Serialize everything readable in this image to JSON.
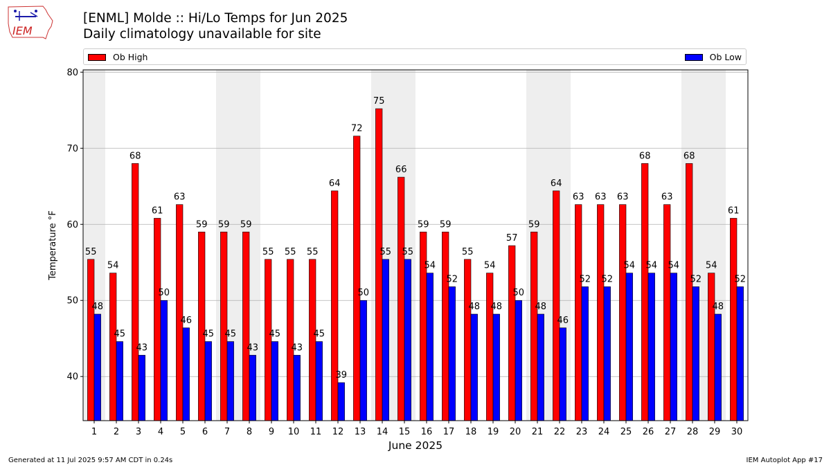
{
  "logo": {
    "text": "IEM"
  },
  "header": {
    "title": "[ENML] Molde :: Hi/Lo Temps for Jun 2025",
    "subtitle": "Daily climatology unavailable for site"
  },
  "legend": {
    "high_label": "Ob High",
    "low_label": "Ob Low"
  },
  "footer": {
    "generated": "Generated at 11 Jul 2025 9:57 AM CDT in 0.24s",
    "app": "IEM Autoplot App #17"
  },
  "colors": {
    "high": "#ff0000",
    "low": "#0000ff",
    "weekend_band": "#eeeeee",
    "grid": "#b0b0b0"
  },
  "chart_data": {
    "type": "bar",
    "title": "[ENML] Molde :: Hi/Lo Temps for Jun 2025",
    "subtitle": "Daily climatology unavailable for site",
    "xlabel": "June 2025",
    "ylabel": "Temperature °F",
    "ylim": [
      34.2,
      80.3
    ],
    "yticks": [
      40,
      50,
      60,
      70,
      80
    ],
    "grid": "horizontal",
    "legend_placement": "top",
    "categories": [
      "1",
      "2",
      "3",
      "4",
      "5",
      "6",
      "7",
      "8",
      "9",
      "10",
      "11",
      "12",
      "13",
      "14",
      "15",
      "16",
      "17",
      "18",
      "19",
      "20",
      "21",
      "22",
      "23",
      "24",
      "25",
      "26",
      "27",
      "28",
      "29",
      "30"
    ],
    "weekend_days": [
      1,
      7,
      8,
      14,
      15,
      21,
      22,
      28,
      29
    ],
    "series": [
      {
        "name": "Ob High",
        "values": [
          55.4,
          53.6,
          68.0,
          60.8,
          62.6,
          59.0,
          59.0,
          59.0,
          55.4,
          55.4,
          55.4,
          64.4,
          71.6,
          75.2,
          66.2,
          59.0,
          59.0,
          55.4,
          53.6,
          57.2,
          59.0,
          64.4,
          62.6,
          62.6,
          62.6,
          68.0,
          62.6,
          68.0,
          53.6,
          60.8
        ],
        "labels": [
          "55",
          "54",
          "68",
          "61",
          "63",
          "59",
          "59",
          "59",
          "55",
          "55",
          "55",
          "64",
          "72",
          "75",
          "66",
          "59",
          "59",
          "55",
          "54",
          "57",
          "59",
          "64",
          "63",
          "63",
          "63",
          "68",
          "63",
          "68",
          "54",
          "61"
        ]
      },
      {
        "name": "Ob Low",
        "values": [
          48.2,
          44.6,
          42.8,
          50.0,
          46.4,
          44.6,
          44.6,
          42.8,
          44.6,
          42.8,
          44.6,
          39.2,
          50.0,
          55.4,
          55.4,
          53.6,
          51.8,
          48.2,
          48.2,
          50.0,
          48.2,
          46.4,
          51.8,
          51.8,
          53.6,
          53.6,
          53.6,
          51.8,
          48.2,
          51.8
        ],
        "labels": [
          "48",
          "45",
          "43",
          "50",
          "46",
          "45",
          "45",
          "43",
          "45",
          "43",
          "45",
          "39",
          "50",
          "55",
          "55",
          "54",
          "52",
          "48",
          "48",
          "50",
          "48",
          "46",
          "52",
          "52",
          "54",
          "54",
          "54",
          "52",
          "48",
          "52"
        ]
      }
    ]
  }
}
